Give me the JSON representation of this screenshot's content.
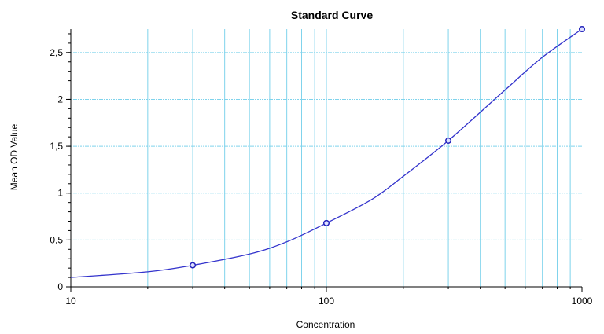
{
  "chart_data": {
    "type": "line",
    "title": "Standard Curve",
    "xlabel": "Concentration",
    "ylabel": "Mean OD Value",
    "x_scale": "log",
    "xlim": [
      10,
      1000
    ],
    "ylim": [
      0,
      2.75
    ],
    "x_ticks": [
      {
        "value": 10,
        "label": "10"
      },
      {
        "value": 100,
        "label": "100"
      },
      {
        "value": 1000,
        "label": "1000"
      }
    ],
    "y_ticks": [
      {
        "value": 0,
        "label": "0"
      },
      {
        "value": 0.5,
        "label": "0,5"
      },
      {
        "value": 1,
        "label": "1"
      },
      {
        "value": 1.5,
        "label": "1,5"
      },
      {
        "value": 2,
        "label": "2"
      },
      {
        "value": 2.5,
        "label": "2,5"
      }
    ],
    "grid": true,
    "series": [
      {
        "points": [
          {
            "x": 30,
            "y": 0.23
          },
          {
            "x": 100,
            "y": 0.68
          },
          {
            "x": 300,
            "y": 1.56
          },
          {
            "x": 1000,
            "y": 2.75
          }
        ],
        "fit_curve": [
          {
            "x": 10,
            "y": 0.1
          },
          {
            "x": 20,
            "y": 0.16
          },
          {
            "x": 30,
            "y": 0.23
          },
          {
            "x": 50,
            "y": 0.35
          },
          {
            "x": 70,
            "y": 0.48
          },
          {
            "x": 100,
            "y": 0.68
          },
          {
            "x": 150,
            "y": 0.93
          },
          {
            "x": 200,
            "y": 1.18
          },
          {
            "x": 300,
            "y": 1.56
          },
          {
            "x": 500,
            "y": 2.1
          },
          {
            "x": 700,
            "y": 2.45
          },
          {
            "x": 1000,
            "y": 2.75
          }
        ]
      }
    ],
    "colors": {
      "curve": "#3333cc",
      "marker": "#2222bb",
      "grid": "#7fd3ec",
      "axis": "#000000"
    }
  }
}
